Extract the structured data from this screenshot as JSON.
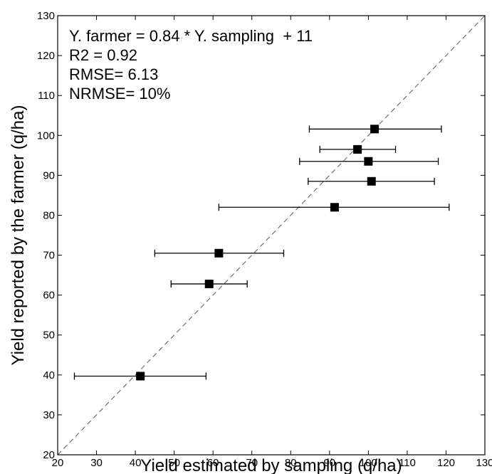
{
  "chart_data": {
    "type": "scatter",
    "xlabel": "Yield estimated by sampling (q/ha)",
    "ylabel": "Yield reported by the farmer (q/ha)",
    "xlim": [
      20,
      130
    ],
    "ylim": [
      20,
      130
    ],
    "xticks": [
      20,
      30,
      40,
      50,
      60,
      70,
      80,
      90,
      100,
      110,
      120,
      130
    ],
    "yticks": [
      20,
      30,
      40,
      50,
      60,
      70,
      80,
      90,
      100,
      110,
      120,
      130
    ],
    "grid": false,
    "reference_line": {
      "type": "1:1",
      "style": "dashed"
    },
    "annotations": [
      "Y. farmer = 0.84 * Y. sampling  + 11",
      "R2 = 0.92",
      "RMSE= 6.13",
      "NRMSE= 10%"
    ],
    "points": [
      {
        "x": 41.3,
        "y": 39.7,
        "xerr_low": 24.3,
        "xerr_high": 58.2
      },
      {
        "x": 59.0,
        "y": 62.8,
        "xerr_low": 49.2,
        "xerr_high": 68.8
      },
      {
        "x": 61.5,
        "y": 70.5,
        "xerr_low": 45.0,
        "xerr_high": 78.2
      },
      {
        "x": 91.3,
        "y": 82.0,
        "xerr_low": 61.5,
        "xerr_high": 120.8
      },
      {
        "x": 100.8,
        "y": 88.5,
        "xerr_low": 84.5,
        "xerr_high": 117.0
      },
      {
        "x": 100.0,
        "y": 93.5,
        "xerr_low": 82.3,
        "xerr_high": 118.0
      },
      {
        "x": 97.2,
        "y": 96.5,
        "xerr_low": 87.5,
        "xerr_high": 107.0
      },
      {
        "x": 101.6,
        "y": 101.6,
        "xerr_low": 84.8,
        "xerr_high": 118.8
      }
    ],
    "colors": {
      "marker": "#000000",
      "error_bar": "#000000",
      "reference_line": "#555555"
    }
  }
}
